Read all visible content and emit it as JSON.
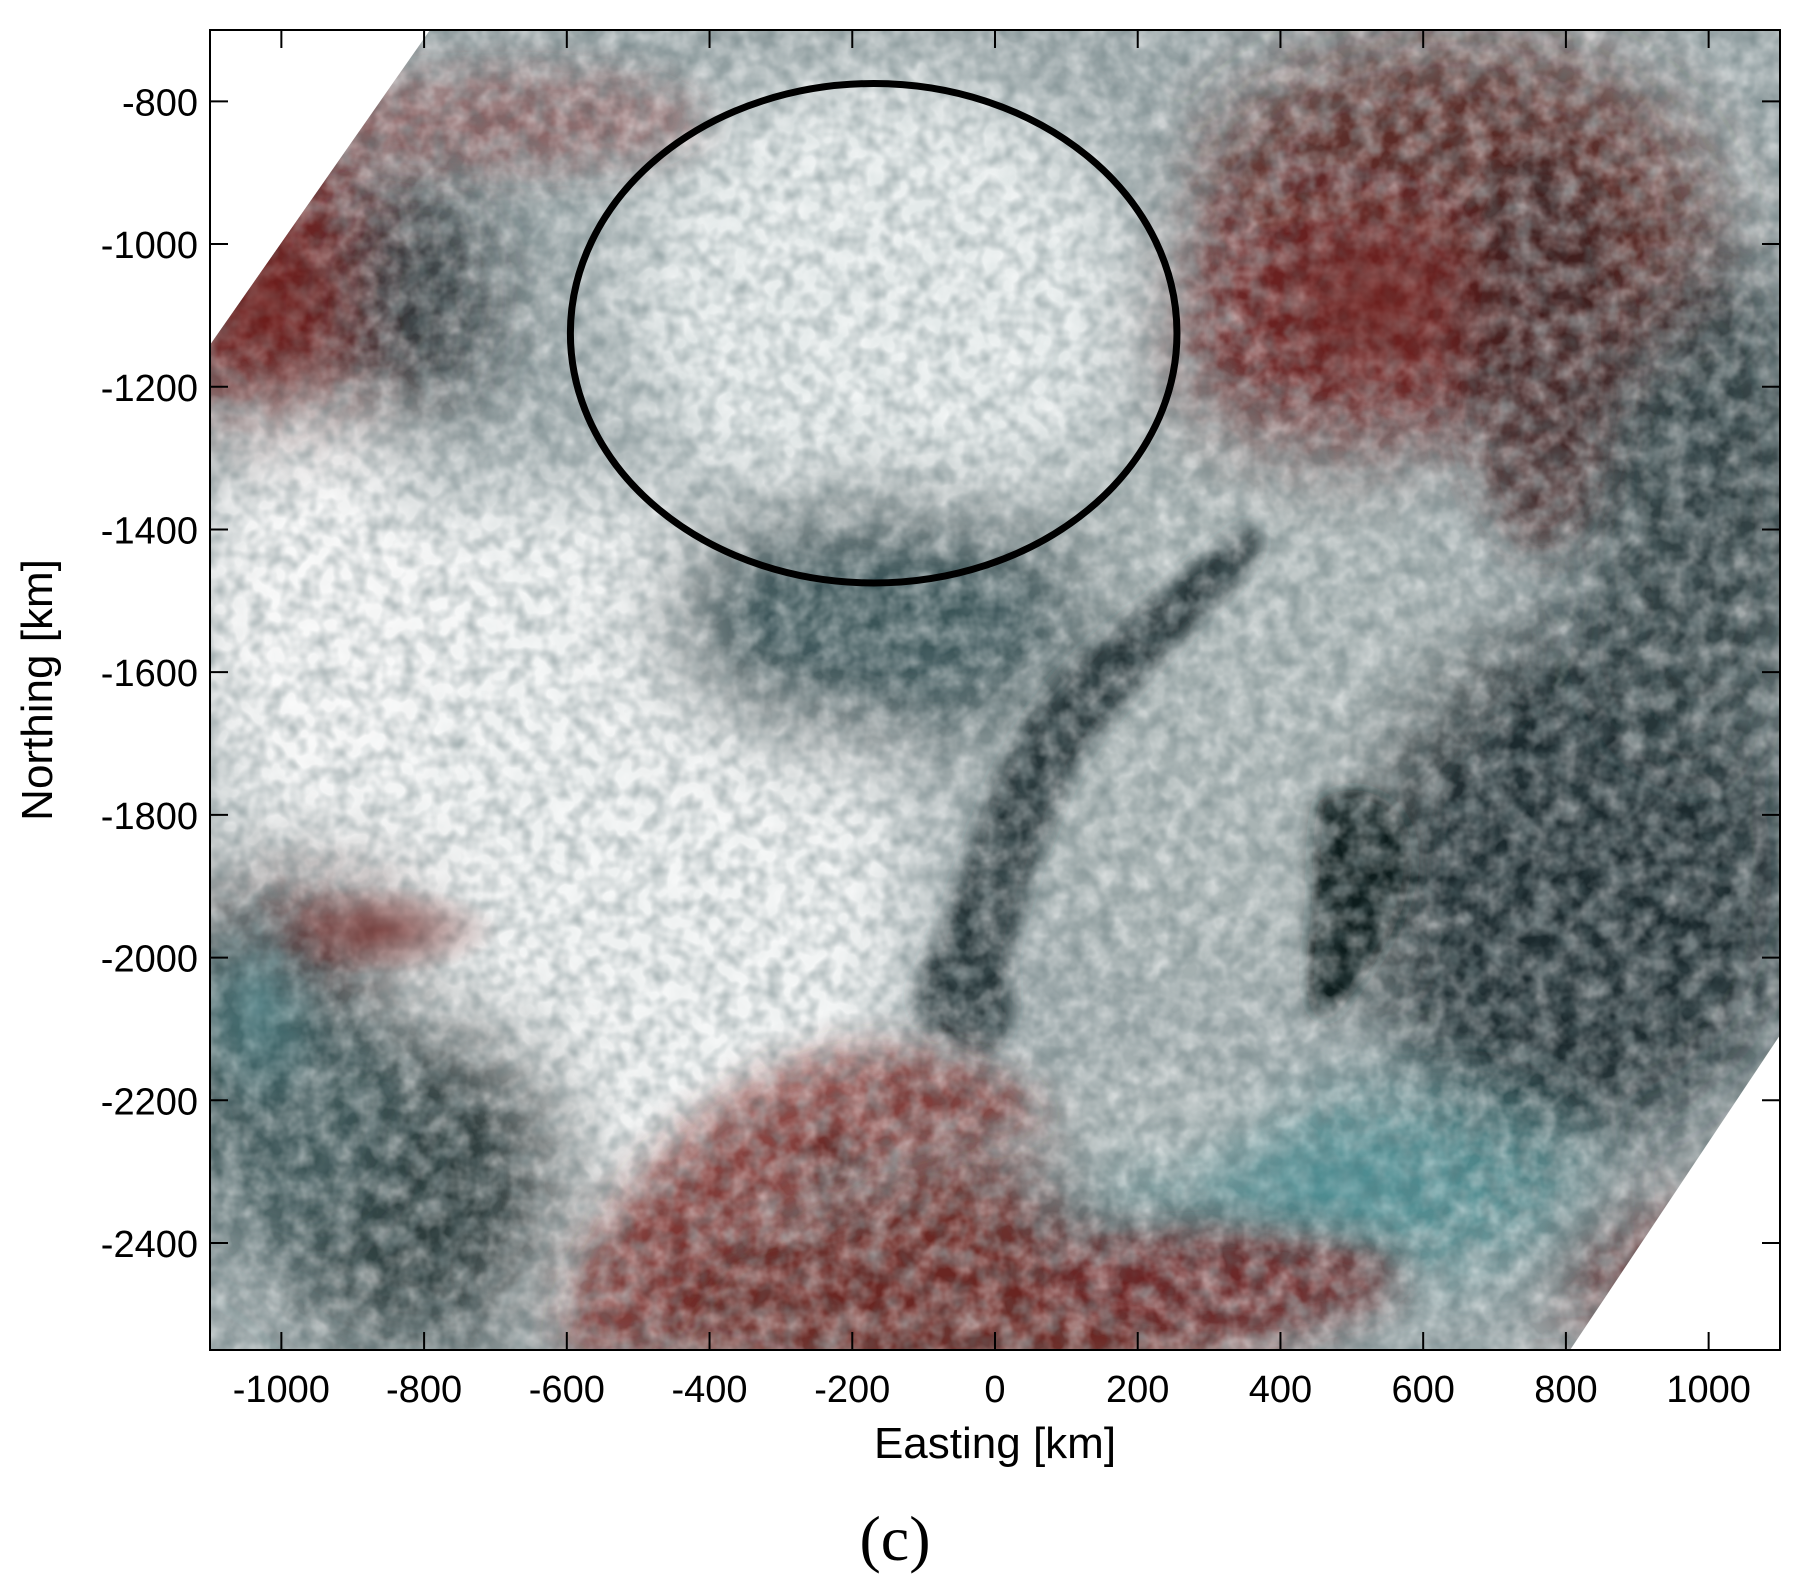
{
  "figure": {
    "panel_label": "(c)",
    "x_axis": {
      "title": "Easting [km]",
      "range": [
        -1100,
        1100
      ],
      "ticks": [
        -1000,
        -800,
        -600,
        -400,
        -200,
        0,
        200,
        400,
        600,
        800,
        1000
      ]
    },
    "y_axis": {
      "title": "Northing [km]",
      "range": [
        -2550,
        -700
      ],
      "ticks": [
        -800,
        -1000,
        -1200,
        -1400,
        -1600,
        -1800,
        -2000,
        -2200,
        -2400
      ]
    },
    "highlight_ellipse": {
      "center_easting": -170,
      "center_northing": -1125,
      "radius_easting": 425,
      "radius_northing": 350,
      "color": "#000000"
    },
    "imagery": {
      "type": "false-color satellite composite",
      "palette": {
        "clouds": "#eef2f2",
        "ice": "#b9c4c4",
        "dark_sea": "#1b2a2d",
        "teal_water": "#4f8c90",
        "red_cloud": "#7a2a26",
        "land_dark": "#2e3b3d"
      }
    }
  }
}
